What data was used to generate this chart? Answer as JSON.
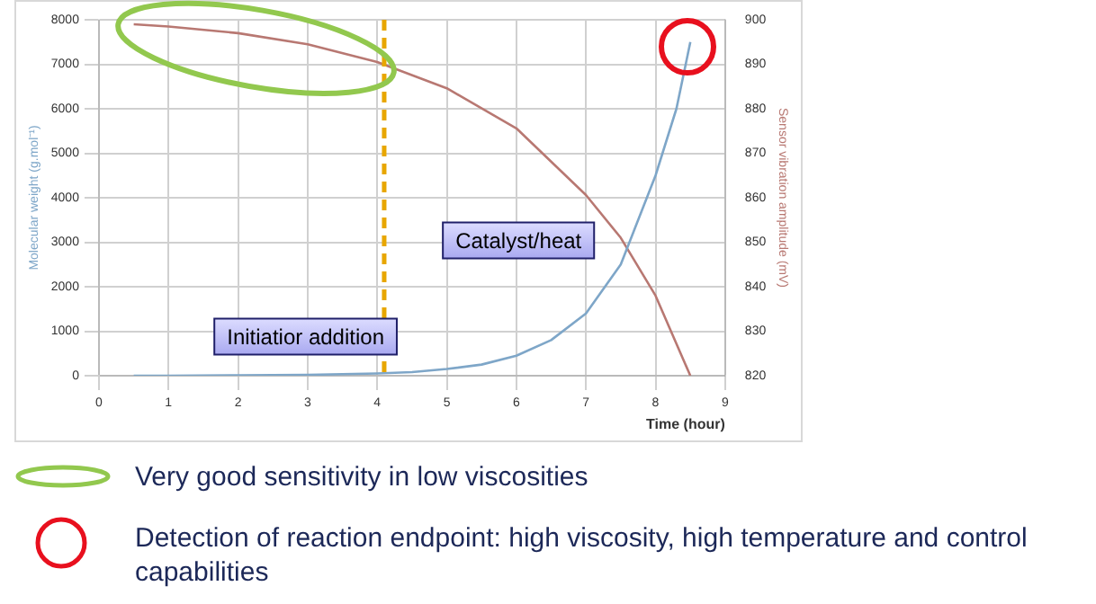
{
  "chart_data": {
    "type": "line",
    "xlabel": "Time (hour)",
    "ylabel": "Molecular weight (g.mol⁻¹)",
    "y2label": "Sensor vibration amplitude (mV)",
    "xlim": [
      0,
      9
    ],
    "xticks": [
      0,
      1,
      2,
      3,
      4,
      5,
      6,
      7,
      8,
      9
    ],
    "ylim": [
      0,
      8000
    ],
    "yticks": [
      0,
      1000,
      2000,
      3000,
      4000,
      5000,
      6000,
      7000,
      8000
    ],
    "y2lim": [
      820,
      900
    ],
    "y2ticks": [
      820,
      830,
      840,
      850,
      860,
      870,
      880,
      890,
      900
    ],
    "grid": true,
    "legend": false,
    "marker": "none",
    "line_style": "solid",
    "series": [
      {
        "color": "#7ea6c8",
        "x": [
          0.5,
          1,
          2,
          3,
          4,
          4.5,
          5,
          5.5,
          6,
          6.5,
          7,
          7.5,
          8,
          8.3,
          8.5
        ],
        "values": [
          0,
          0,
          10,
          20,
          50,
          80,
          150,
          250,
          450,
          800,
          1400,
          2500,
          4500,
          6000,
          7500
        ]
      },
      {
        "color": "#b87872",
        "axis": "y2",
        "x": [
          0.5,
          1,
          2,
          3,
          4,
          5,
          6,
          7,
          7.5,
          8,
          8.5
        ],
        "values": [
          899,
          898.5,
          897,
          894.5,
          890.5,
          884.6,
          875.6,
          860.6,
          851,
          838,
          820
        ]
      }
    ],
    "ref_lines": [
      {
        "axis": "x",
        "value": 4.1,
        "color": "#e8a600",
        "line_style": "dashed"
      }
    ],
    "annotations": [
      "Initiatior addition",
      "Catalyst/heat",
      "Very good sensitivity in low viscosities",
      "Detection of reaction endpoint: high viscosity, high temperature and control capabilities"
    ]
  }
}
